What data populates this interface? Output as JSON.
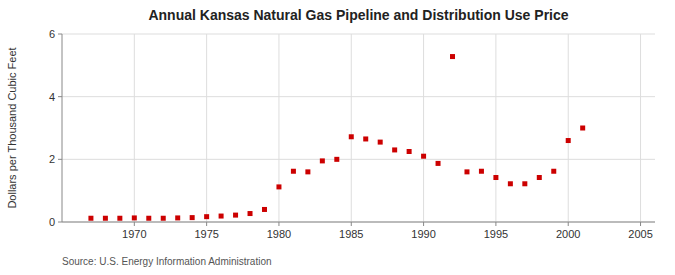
{
  "chart_data": {
    "type": "scatter",
    "title": "Annual Kansas Natural Gas Pipeline and Distribution Use Price",
    "ylabel": "Dollars per Thousand Cubic Feet",
    "source": "Source: U.S. Energy Information Administration",
    "x": [
      1967,
      1968,
      1969,
      1970,
      1971,
      1972,
      1973,
      1974,
      1975,
      1976,
      1977,
      1978,
      1979,
      1980,
      1981,
      1982,
      1983,
      1984,
      1985,
      1986,
      1987,
      1988,
      1989,
      1990,
      1991,
      1992,
      1993,
      1994,
      1995,
      1996,
      1997,
      1998,
      1999,
      2000,
      2001
    ],
    "values": [
      0.12,
      0.12,
      0.12,
      0.13,
      0.12,
      0.12,
      0.13,
      0.14,
      0.17,
      0.19,
      0.22,
      0.27,
      0.4,
      1.12,
      1.62,
      1.6,
      1.95,
      2.0,
      2.72,
      2.65,
      2.55,
      2.3,
      2.25,
      2.1,
      1.87,
      5.28,
      1.6,
      1.62,
      1.42,
      1.22,
      1.22,
      1.42,
      1.62,
      2.6,
      3.0
    ],
    "color": "#cc0000",
    "marker": "square",
    "xlim": [
      1965,
      2006
    ],
    "ylim": [
      0,
      6
    ],
    "xticks": [
      1970,
      1975,
      1980,
      1985,
      1990,
      1995,
      2000,
      2005
    ],
    "yticks": [
      0,
      2,
      4,
      6
    ],
    "grid": true
  }
}
